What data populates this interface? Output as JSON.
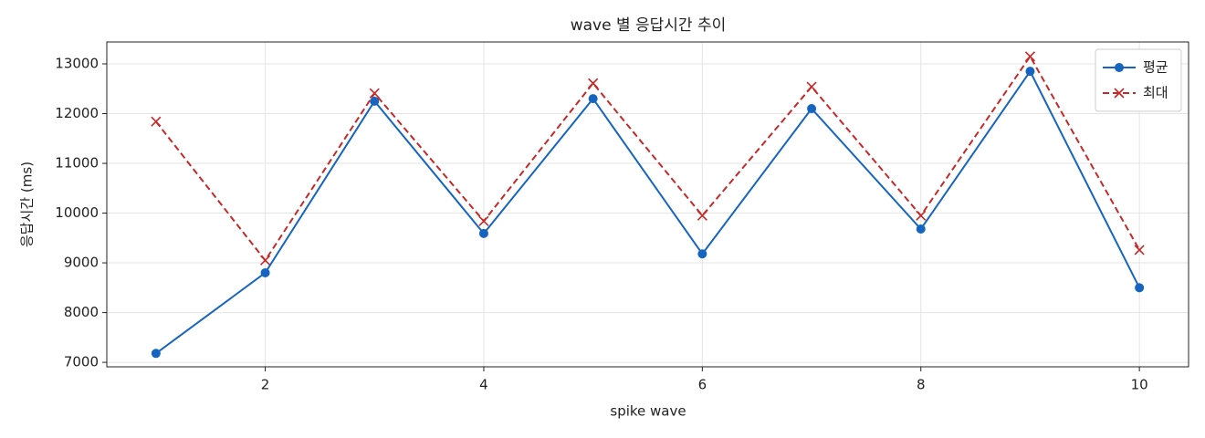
{
  "chart_data": {
    "type": "line",
    "title": "wave 별 응답시간 추이",
    "xlabel": "spike wave",
    "ylabel": "응답시간 (ms)",
    "x": [
      1,
      2,
      3,
      4,
      5,
      6,
      7,
      8,
      9,
      10
    ],
    "series": [
      {
        "name": "평균",
        "color": "#1565c0",
        "marker": "circle",
        "dash": false,
        "values": [
          7180,
          8800,
          12250,
          9590,
          12300,
          9180,
          12100,
          9680,
          12850,
          8500
        ]
      },
      {
        "name": "최대",
        "color": "#c62828",
        "marker": "x",
        "dash": true,
        "values": [
          11840,
          9050,
          12410,
          9840,
          12610,
          9950,
          12540,
          9950,
          13150,
          9260
        ]
      }
    ],
    "xlim": [
      0.55,
      10.45
    ],
    "ylim": [
      6910,
      13440
    ],
    "xticks": [
      2,
      4,
      6,
      8,
      10
    ],
    "yticks": [
      7000,
      8000,
      9000,
      10000,
      11000,
      12000,
      13000
    ],
    "grid": true,
    "legend": "upper right"
  }
}
